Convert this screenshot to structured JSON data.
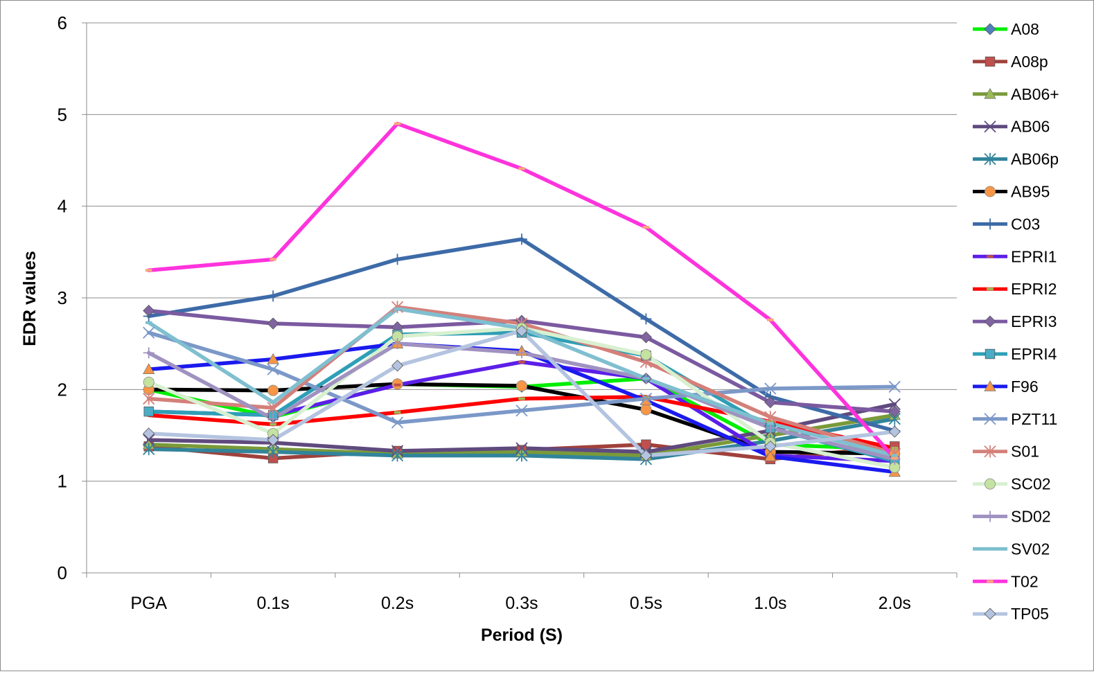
{
  "chart_data": {
    "type": "line",
    "title": "",
    "xlabel": "Period (S)",
    "ylabel": "EDR values",
    "categories": [
      "PGA",
      "0.1s",
      "0.2s",
      "0.3s",
      "0.5s",
      "1.0s",
      "2.0s"
    ],
    "ylim": [
      0,
      6
    ],
    "yticks": [
      0,
      1,
      2,
      3,
      4,
      5,
      6
    ],
    "grid": "horizontal",
    "legend": "right",
    "series": [
      {
        "name": "A08",
        "color": "#00ee00",
        "marker": "diamond",
        "marker_color": "#4f81bd",
        "values": [
          2.0,
          1.7,
          2.06,
          2.03,
          2.12,
          1.4,
          1.35
        ]
      },
      {
        "name": "A08p",
        "color": "#a0413c",
        "marker": "square",
        "marker_color": "#c0504d",
        "values": [
          1.38,
          1.25,
          1.33,
          1.34,
          1.4,
          1.24,
          1.38
        ]
      },
      {
        "name": "AB06+",
        "color": "#7a9a3a",
        "marker": "triangle",
        "marker_color": "#9bbb59",
        "values": [
          1.4,
          1.35,
          1.3,
          1.32,
          1.28,
          1.5,
          1.72
        ]
      },
      {
        "name": "AB06",
        "color": "#5f4a7e",
        "marker": "x",
        "marker_color": "#5f4a7e",
        "values": [
          1.45,
          1.42,
          1.33,
          1.36,
          1.32,
          1.55,
          1.84
        ]
      },
      {
        "name": "AB06p",
        "color": "#31849b",
        "marker": "star",
        "marker_color": "#31849b",
        "values": [
          1.35,
          1.32,
          1.28,
          1.28,
          1.24,
          1.44,
          1.68
        ]
      },
      {
        "name": "AB95",
        "color": "#000000",
        "marker": "circle",
        "marker_color": "#f79646",
        "values": [
          2.0,
          1.99,
          2.06,
          2.04,
          1.78,
          1.32,
          1.3
        ]
      },
      {
        "name": "C03",
        "color": "#3d6ba8",
        "marker": "plus",
        "marker_color": "#3d6ba8",
        "values": [
          2.8,
          3.02,
          3.42,
          3.64,
          2.77,
          1.92,
          1.55
        ]
      },
      {
        "name": "EPRI1",
        "color": "#5c1ee8",
        "marker": "dash",
        "marker_color": "#c0504d",
        "values": [
          1.76,
          1.72,
          2.05,
          2.3,
          2.12,
          1.28,
          1.22
        ]
      },
      {
        "name": "EPRI2",
        "color": "#ff0000",
        "marker": "dash",
        "marker_color": "#9bbb59",
        "values": [
          1.72,
          1.62,
          1.75,
          1.9,
          1.92,
          1.65,
          1.36
        ]
      },
      {
        "name": "EPRI3",
        "color": "#7b5aa0",
        "marker": "diamond",
        "marker_color": "#8064a2",
        "values": [
          2.86,
          2.72,
          2.68,
          2.75,
          2.57,
          1.86,
          1.76
        ]
      },
      {
        "name": "EPRI4",
        "color": "#2e9fb6",
        "marker": "square",
        "marker_color": "#4bacc6",
        "values": [
          1.76,
          1.72,
          2.6,
          2.62,
          2.37,
          1.58,
          1.22
        ]
      },
      {
        "name": "F96",
        "color": "#1a1aee",
        "marker": "triangle",
        "marker_color": "#f79646",
        "values": [
          2.22,
          2.33,
          2.5,
          2.42,
          1.88,
          1.27,
          1.1
        ]
      },
      {
        "name": "PZT11",
        "color": "#7b98c8",
        "marker": "x",
        "marker_color": "#7b98c8",
        "values": [
          2.62,
          2.22,
          1.64,
          1.77,
          1.9,
          2.01,
          2.03
        ]
      },
      {
        "name": "S01",
        "color": "#d4807a",
        "marker": "star",
        "marker_color": "#d4807a",
        "values": [
          1.9,
          1.8,
          2.9,
          2.72,
          2.3,
          1.7,
          1.3
        ]
      },
      {
        "name": "SC02",
        "color": "#d8f0d0",
        "marker": "circle",
        "marker_color": "#c4e2a0",
        "values": [
          2.08,
          1.52,
          2.58,
          2.67,
          2.38,
          1.42,
          1.15
        ]
      },
      {
        "name": "SD02",
        "color": "#a092c0",
        "marker": "plus",
        "marker_color": "#a092c0",
        "values": [
          2.4,
          1.68,
          2.5,
          2.4,
          2.12,
          1.58,
          1.24
        ]
      },
      {
        "name": "SV02",
        "color": "#7fbfd0",
        "marker": "dash",
        "marker_color": "#7fbfd0",
        "values": [
          2.73,
          1.86,
          2.88,
          2.67,
          2.12,
          1.63,
          1.28
        ]
      },
      {
        "name": "T02",
        "color": "#ff33dd",
        "marker": "dash",
        "marker_color": "#f6a87a",
        "values": [
          3.3,
          3.42,
          4.9,
          4.41,
          3.77,
          2.76,
          1.25
        ]
      },
      {
        "name": "TP05",
        "color": "#b4c4e0",
        "marker": "diamond",
        "marker_color": "#b4c4e0",
        "values": [
          1.52,
          1.45,
          2.26,
          2.64,
          1.28,
          1.38,
          1.54
        ]
      }
    ]
  }
}
